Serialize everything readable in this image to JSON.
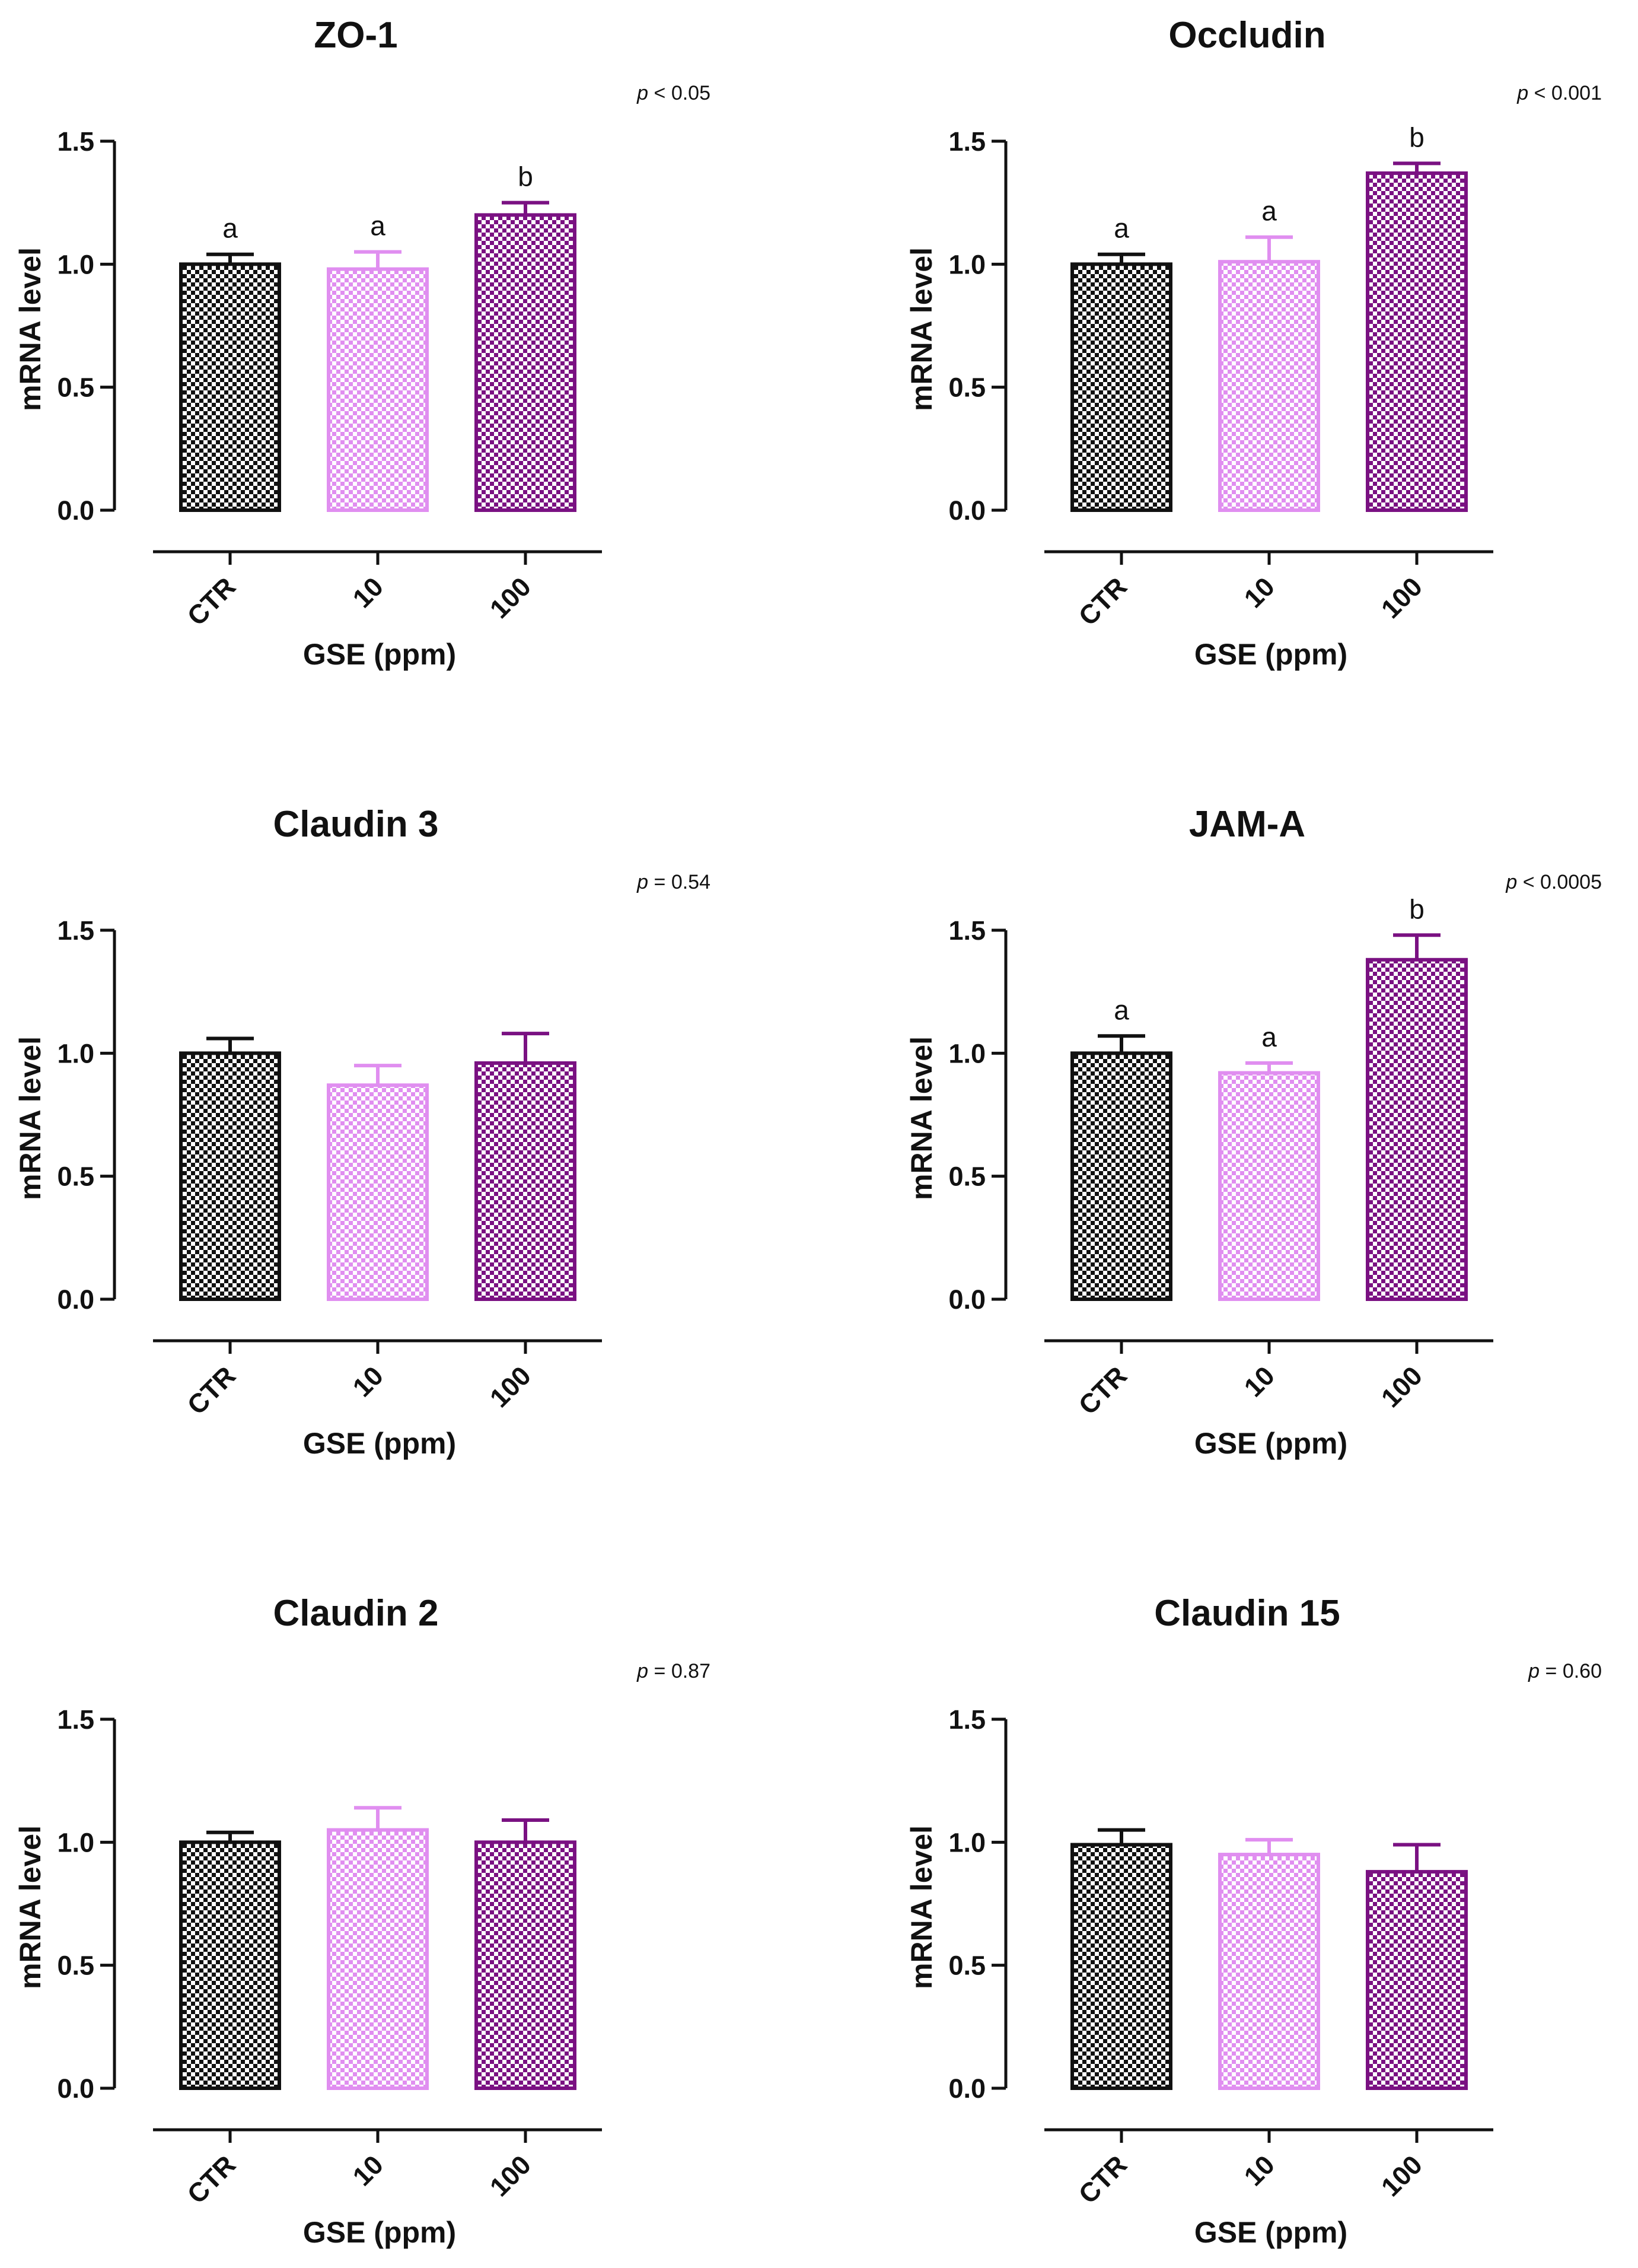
{
  "colors": {
    "CTR": "#111111",
    "10": "#e08ef0",
    "100": "#7a1182",
    "axis": "#111111"
  },
  "chart_data": [
    {
      "type": "bar",
      "title": "ZO-1",
      "pvalue": {
        "p": "p",
        "rest": " < 0.05"
      },
      "xlabel": "GSE (ppm)",
      "ylabel": "mRNA level",
      "ylim": [
        0,
        1.5
      ],
      "yticks": [
        "0.0",
        "0.5",
        "1.0",
        "1.5"
      ],
      "categories": [
        "CTR",
        "10",
        "100"
      ],
      "values": [
        1.0,
        0.98,
        1.2
      ],
      "errors": [
        0.04,
        0.07,
        0.05
      ],
      "letters": [
        "a",
        "a",
        "b"
      ]
    },
    {
      "type": "bar",
      "title": "Occludin",
      "pvalue": {
        "p": "p",
        "rest": " < 0.001"
      },
      "xlabel": "GSE (ppm)",
      "ylabel": "mRNA level",
      "ylim": [
        0,
        1.5
      ],
      "yticks": [
        "0.0",
        "0.5",
        "1.0",
        "1.5"
      ],
      "categories": [
        "CTR",
        "10",
        "100"
      ],
      "values": [
        1.0,
        1.01,
        1.37
      ],
      "errors": [
        0.04,
        0.1,
        0.04
      ],
      "letters": [
        "a",
        "a",
        "b"
      ]
    },
    {
      "type": "bar",
      "title": "Claudin 3",
      "pvalue": {
        "p": "p",
        "rest": " = 0.54"
      },
      "xlabel": "GSE (ppm)",
      "ylabel": "mRNA level",
      "ylim": [
        0,
        1.5
      ],
      "yticks": [
        "0.0",
        "0.5",
        "1.0",
        "1.5"
      ],
      "categories": [
        "CTR",
        "10",
        "100"
      ],
      "values": [
        1.0,
        0.87,
        0.96
      ],
      "errors": [
        0.06,
        0.08,
        0.12
      ],
      "letters": [
        "",
        "",
        ""
      ]
    },
    {
      "type": "bar",
      "title": "JAM-A",
      "pvalue": {
        "p": "p",
        "rest": " < 0.0005"
      },
      "xlabel": "GSE (ppm)",
      "ylabel": "mRNA level",
      "ylim": [
        0,
        1.5
      ],
      "yticks": [
        "0.0",
        "0.5",
        "1.0",
        "1.5"
      ],
      "categories": [
        "CTR",
        "10",
        "100"
      ],
      "values": [
        1.0,
        0.92,
        1.38
      ],
      "errors": [
        0.07,
        0.04,
        0.1
      ],
      "letters": [
        "a",
        "a",
        "b"
      ]
    },
    {
      "type": "bar",
      "title": "Claudin 2",
      "pvalue": {
        "p": "p",
        "rest": " = 0.87"
      },
      "xlabel": "GSE (ppm)",
      "ylabel": "mRNA level",
      "ylim": [
        0,
        1.5
      ],
      "yticks": [
        "0.0",
        "0.5",
        "1.0",
        "1.5"
      ],
      "categories": [
        "CTR",
        "10",
        "100"
      ],
      "values": [
        1.0,
        1.05,
        1.0
      ],
      "errors": [
        0.04,
        0.09,
        0.09
      ],
      "letters": [
        "",
        "",
        ""
      ]
    },
    {
      "type": "bar",
      "title": "Claudin 15",
      "pvalue": {
        "p": "p",
        "rest": " = 0.60"
      },
      "xlabel": "GSE (ppm)",
      "ylabel": "mRNA level",
      "ylim": [
        0,
        1.5
      ],
      "yticks": [
        "0.0",
        "0.5",
        "1.0",
        "1.5"
      ],
      "categories": [
        "CTR",
        "10",
        "100"
      ],
      "values": [
        0.99,
        0.95,
        0.88
      ],
      "errors": [
        0.06,
        0.06,
        0.11
      ],
      "letters": [
        "",
        "",
        ""
      ]
    }
  ]
}
